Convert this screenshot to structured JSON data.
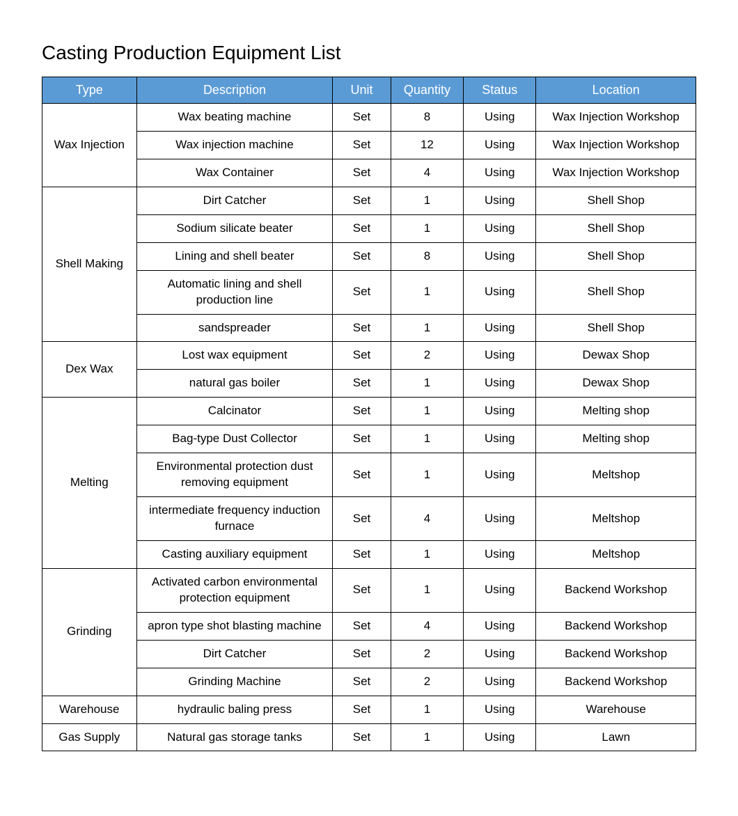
{
  "title": "Casting Production Equipment List",
  "table": {
    "header_bg": "#5b9bd5",
    "header_fg": "#ffffff",
    "border_color": "#000000",
    "columns": [
      {
        "key": "type",
        "label": "Type",
        "width_pct": 13
      },
      {
        "key": "description",
        "label": "Description",
        "width_pct": 27
      },
      {
        "key": "unit",
        "label": "Unit",
        "width_pct": 8
      },
      {
        "key": "quantity",
        "label": "Quantity",
        "width_pct": 10
      },
      {
        "key": "status",
        "label": "Status",
        "width_pct": 10
      },
      {
        "key": "location",
        "label": "Location",
        "width_pct": 22
      }
    ],
    "groups": [
      {
        "type": "Wax Injection",
        "rows": [
          {
            "description": "Wax beating machine",
            "unit": "Set",
            "quantity": "8",
            "status": "Using",
            "location": "Wax Injection Workshop"
          },
          {
            "description": "Wax injection machine",
            "unit": "Set",
            "quantity": "12",
            "status": "Using",
            "location": "Wax Injection Workshop"
          },
          {
            "description": "Wax Container",
            "unit": "Set",
            "quantity": "4",
            "status": "Using",
            "location": "Wax Injection Workshop"
          }
        ]
      },
      {
        "type": "Shell Making",
        "rows": [
          {
            "description": "Dirt Catcher",
            "unit": "Set",
            "quantity": "1",
            "status": "Using",
            "location": "Shell Shop"
          },
          {
            "description": "Sodium silicate beater",
            "unit": "Set",
            "quantity": "1",
            "status": "Using",
            "location": "Shell Shop"
          },
          {
            "description": "Lining and shell beater",
            "unit": "Set",
            "quantity": "8",
            "status": "Using",
            "location": "Shell Shop"
          },
          {
            "description": "Automatic lining and shell production line",
            "unit": "Set",
            "quantity": "1",
            "status": "Using",
            "location": "Shell Shop"
          },
          {
            "description": "sandspreader",
            "unit": "Set",
            "quantity": "1",
            "status": "Using",
            "location": "Shell Shop"
          }
        ]
      },
      {
        "type": "Dex Wax",
        "rows": [
          {
            "description": "Lost wax equipment",
            "unit": "Set",
            "quantity": "2",
            "status": "Using",
            "location": "Dewax Shop"
          },
          {
            "description": "natural gas boiler",
            "unit": "Set",
            "quantity": "1",
            "status": "Using",
            "location": "Dewax Shop"
          }
        ]
      },
      {
        "type": "Melting",
        "rows": [
          {
            "description": "Calcinator",
            "unit": "Set",
            "quantity": "1",
            "status": "Using",
            "location": "Melting shop"
          },
          {
            "description": "Bag-type Dust Collector",
            "unit": "Set",
            "quantity": "1",
            "status": "Using",
            "location": "Melting shop"
          },
          {
            "description": "Environmental protection dust removing equipment",
            "unit": "Set",
            "quantity": "1",
            "status": "Using",
            "location": "Meltshop"
          },
          {
            "description": "intermediate frequency induction furnace",
            "unit": "Set",
            "quantity": "4",
            "status": "Using",
            "location": "Meltshop"
          },
          {
            "description": "Casting auxiliary equipment",
            "unit": "Set",
            "quantity": "1",
            "status": "Using",
            "location": "Meltshop"
          }
        ]
      },
      {
        "type": "Grinding",
        "rows": [
          {
            "description": "Activated carbon environmental protection equipment",
            "unit": "Set",
            "quantity": "1",
            "status": "Using",
            "location": "Backend Workshop"
          },
          {
            "description": "apron type shot blasting machine",
            "unit": "Set",
            "quantity": "4",
            "status": "Using",
            "location": "Backend Workshop"
          },
          {
            "description": "Dirt Catcher",
            "unit": "Set",
            "quantity": "2",
            "status": "Using",
            "location": "Backend Workshop"
          },
          {
            "description": "Grinding Machine",
            "unit": "Set",
            "quantity": "2",
            "status": "Using",
            "location": "Backend Workshop"
          }
        ]
      },
      {
        "type": "Warehouse",
        "rows": [
          {
            "description": "hydraulic baling press",
            "unit": "Set",
            "quantity": "1",
            "status": "Using",
            "location": "Warehouse"
          }
        ]
      },
      {
        "type": "Gas Supply",
        "rows": [
          {
            "description": "Natural gas storage tanks",
            "unit": "Set",
            "quantity": "1",
            "status": "Using",
            "location": "Lawn"
          }
        ]
      }
    ]
  }
}
